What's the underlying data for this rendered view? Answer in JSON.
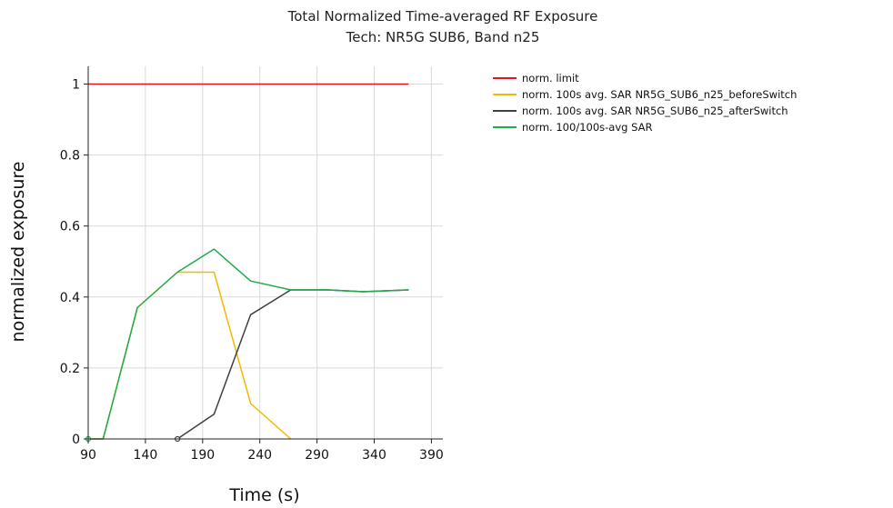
{
  "chart_data": {
    "type": "line",
    "title": "Total Normalized Time-averaged RF Exposure",
    "subtitle": "Tech: NR5G SUB6, Band n25",
    "xlabel": "Time (s)",
    "ylabel": "normalized exposure",
    "xlim": [
      90,
      400
    ],
    "ylim": [
      0,
      1.05
    ],
    "xticks": [
      90,
      140,
      190,
      240,
      290,
      340,
      390
    ],
    "yticks": [
      0,
      0.2,
      0.4,
      0.6,
      0.8,
      1
    ],
    "ytick_labels": [
      "0",
      "0.2",
      "0.4",
      "0.6",
      "0.8",
      "1"
    ],
    "grid": true,
    "legend_position": "top-right outside",
    "series": [
      {
        "name": "norm. limit",
        "color": "#e8141c",
        "x": [
          90,
          370
        ],
        "y": [
          1,
          1
        ]
      },
      {
        "name": "norm. 100s avg. SAR NR5G_SUB6_n25_beforeSwitch",
        "color": "#f5b800",
        "x": [
          90,
          103,
          133,
          168,
          200,
          232,
          267
        ],
        "y": [
          0,
          0,
          0.37,
          0.47,
          0.47,
          0.1,
          0
        ]
      },
      {
        "name": "norm. 100s avg. SAR NR5G_SUB6_n25_afterSwitch",
        "color": "#404040",
        "x": [
          168,
          200,
          232,
          267,
          300,
          330,
          370
        ],
        "y": [
          0,
          0.07,
          0.35,
          0.42,
          0.42,
          0.415,
          0.42
        ]
      },
      {
        "name": "norm. 100/100s-avg SAR",
        "color": "#1faa4b",
        "x": [
          90,
          103,
          133,
          168,
          200,
          232,
          267,
          300,
          330,
          370
        ],
        "y": [
          0,
          0,
          0.37,
          0.47,
          0.535,
          0.445,
          0.42,
          0.42,
          0.415,
          0.42
        ]
      }
    ]
  }
}
